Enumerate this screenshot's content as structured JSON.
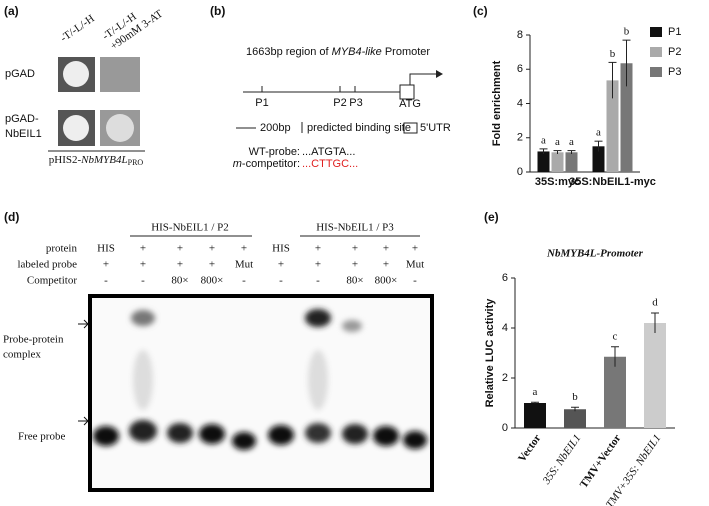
{
  "panel_a": {
    "label": "(a)",
    "col_headers": [
      "-T/-L/-H",
      "-T/-L/-H",
      "+90mM 3-AT"
    ],
    "row_labels": [
      "pGAD",
      "pGAD-",
      "NbEIL1"
    ],
    "caption": [
      "pHIS2-",
      "NbMYB4L",
      "PRO"
    ]
  },
  "panel_b": {
    "label": "(b)",
    "title": [
      "1663bp region of ",
      "MYB4-like",
      " Promoter"
    ],
    "sites": [
      "P1",
      "P2",
      "P3"
    ],
    "start": "ATG",
    "legend": [
      "200bp",
      "predicted binding site",
      "5'UTR"
    ],
    "wt_probe": [
      "WT-probe:",
      "...ATGTA..."
    ],
    "mut_probe": [
      "m",
      "-competitor:",
      "...CTTGC..."
    ]
  },
  "panel_d": {
    "label": "(d)",
    "groups": [
      "HIS-NbEIL1 / P2",
      "HIS-NbEIL1 / P3"
    ],
    "row_labels": [
      "protein",
      "labeled probe",
      "Competitor"
    ],
    "rows": [
      [
        "HIS",
        "+",
        "+",
        "+",
        "+",
        "HIS",
        "+",
        "+",
        "+",
        "+"
      ],
      [
        "+",
        "+",
        "+",
        "+",
        "Mut",
        "+",
        "+",
        "+",
        "+",
        "Mut"
      ],
      [
        "-",
        "-",
        "80×",
        "800×",
        "-",
        "-",
        "-",
        "80×",
        "800×",
        "-"
      ]
    ],
    "band_labels": [
      "Probe-protein",
      "complex",
      "Free probe"
    ]
  },
  "chart_data": [
    {
      "type": "bar",
      "panel_label": "(c)",
      "y_label": "Fold enrichment",
      "categories": [
        "35S:myc",
        "35S:NbEIL1-myc"
      ],
      "series": [
        {
          "name": "P1",
          "color": "#111111",
          "values": [
            1.2,
            1.5
          ],
          "errors": [
            0.15,
            0.3
          ],
          "letters": [
            "a",
            "a"
          ]
        },
        {
          "name": "P2",
          "color": "#aaaaaa",
          "values": [
            1.15,
            5.35
          ],
          "errors": [
            0.1,
            1.05
          ],
          "letters": [
            "a",
            "b"
          ]
        },
        {
          "name": "P3",
          "color": "#777777",
          "values": [
            1.15,
            6.35
          ],
          "errors": [
            0.1,
            1.35
          ],
          "letters": [
            "a",
            "b"
          ]
        }
      ],
      "ylim": [
        0,
        8
      ],
      "yticks": [
        0,
        2,
        4,
        6,
        8
      ],
      "legend": "right"
    },
    {
      "type": "bar",
      "panel_label": "(e)",
      "title": "NbMYB4L-Promoter",
      "y_label": "Relative LUC activity",
      "categories": [
        "Vector",
        "35S: NbEIL1",
        "TMV+Vector",
        "TMV+35S: NbEIL1"
      ],
      "values": [
        1.0,
        0.75,
        2.85,
        4.2
      ],
      "errors": [
        0.03,
        0.08,
        0.4,
        0.4
      ],
      "letters": [
        "a",
        "b",
        "c",
        "d"
      ],
      "colors": [
        "#111111",
        "#555555",
        "#777777",
        "#cccccc"
      ],
      "ylim": [
        0,
        6
      ],
      "yticks": [
        0,
        2,
        4,
        6
      ]
    }
  ]
}
